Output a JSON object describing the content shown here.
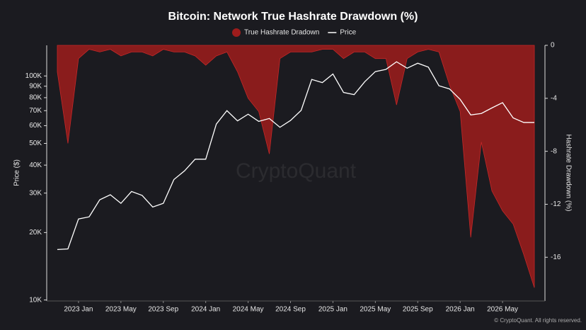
{
  "chart_data": {
    "type": "line",
    "title": "Bitcoin: Network True Hashrate Drawdown (%)",
    "watermark": "CryptoQuant",
    "footer": "© CryptoQuant. All rights reserved.",
    "ylabel": "Price ($)",
    "y2label": "Hashrate Drawdown (%)",
    "yscale": "log",
    "grid": false,
    "legend": "top",
    "x": [
      "2022-11",
      "2022-12",
      "2023-01",
      "2023-02",
      "2023-03",
      "2023-04",
      "2023-05",
      "2023-06",
      "2023-07",
      "2023-08",
      "2023-09",
      "2023-10",
      "2023-11",
      "2023-12",
      "2024-01",
      "2024-02",
      "2024-03",
      "2024-04",
      "2024-05",
      "2024-06",
      "2024-07",
      "2024-08",
      "2024-09",
      "2024-10",
      "2024-11",
      "2024-12",
      "2025-01",
      "2025-02",
      "2025-03",
      "2025-04",
      "2025-05",
      "2025-06",
      "2025-07",
      "2025-08",
      "2025-09",
      "2025-10",
      "2025-11",
      "2025-12",
      "2026-01",
      "2026-02",
      "2026-03",
      "2026-04",
      "2026-05",
      "2026-06",
      "2026-07",
      "2026-08"
    ],
    "xlim": [
      "2022-10",
      "2026-09"
    ],
    "xticks": [
      {
        "value": "2023-01",
        "label": "2023 Jan"
      },
      {
        "value": "2023-05",
        "label": "2023 May"
      },
      {
        "value": "2023-09",
        "label": "2023 Sep"
      },
      {
        "value": "2024-01",
        "label": "2024 Jan"
      },
      {
        "value": "2024-05",
        "label": "2024 May"
      },
      {
        "value": "2024-09",
        "label": "2024 Sep"
      },
      {
        "value": "2025-01",
        "label": "2025 Jan"
      },
      {
        "value": "2025-05",
        "label": "2025 May"
      },
      {
        "value": "2025-09",
        "label": "2025 Sep"
      },
      {
        "value": "2026-01",
        "label": "2026 Jan"
      },
      {
        "value": "2026-05",
        "label": "2026 May"
      }
    ],
    "ylim": [
      9900,
      137000
    ],
    "yticks": [
      {
        "value": 10000,
        "label": "10K"
      },
      {
        "value": 20000,
        "label": "20K"
      },
      {
        "value": 30000,
        "label": "30K"
      },
      {
        "value": 40000,
        "label": "40K"
      },
      {
        "value": 50000,
        "label": "50K"
      },
      {
        "value": 60000,
        "label": "60K"
      },
      {
        "value": 70000,
        "label": "70K"
      },
      {
        "value": 80000,
        "label": "80K"
      },
      {
        "value": 90000,
        "label": "90K"
      },
      {
        "value": 100000,
        "label": "100K"
      }
    ],
    "y2lim": [
      -19.3,
      0
    ],
    "y2ticks": [
      0,
      -4,
      -8,
      -12,
      -16
    ],
    "series": [
      {
        "name": "True Hashrate Dradown",
        "color": "#9e1c1c",
        "axis": "y2",
        "mark": "area",
        "values": [
          -2,
          -7.4,
          -1,
          -0.3,
          -0.5,
          -0.3,
          -0.8,
          -0.5,
          -0.5,
          -0.8,
          -0.3,
          -0.5,
          -0.5,
          -0.8,
          -1.5,
          -0.8,
          -0.5,
          -2,
          -4,
          -5,
          -8.2,
          -1,
          -0.5,
          -0.5,
          -0.5,
          -0.3,
          -0.3,
          -1,
          -0.5,
          -0.5,
          -1,
          -1,
          -4.5,
          -1,
          -0.5,
          -0.3,
          -0.5,
          -3,
          -5,
          -14.5,
          -7.3,
          -11,
          -12.5,
          -13.5,
          -15.8,
          -18.3
        ]
      },
      {
        "name": "Price",
        "color": "#ffffff",
        "mark": "line",
        "values": [
          16800,
          16900,
          23000,
          23500,
          28000,
          29500,
          27000,
          30500,
          29300,
          26000,
          27000,
          34500,
          37700,
          42500,
          42500,
          61000,
          70000,
          63000,
          67500,
          62700,
          64600,
          59000,
          63300,
          70200,
          96500,
          93400,
          102000,
          84400,
          82500,
          94200,
          104600,
          107000,
          115700,
          108300,
          114000,
          109500,
          90400,
          87500,
          78600,
          67000,
          68000,
          72000,
          76000,
          65000,
          62000,
          62000
        ]
      }
    ]
  }
}
